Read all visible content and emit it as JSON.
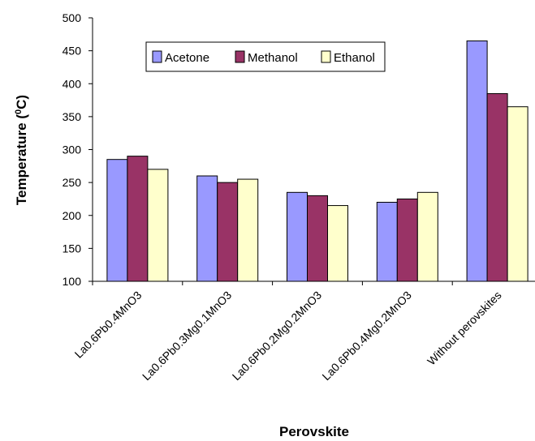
{
  "chart_data": {
    "type": "bar",
    "title": "",
    "xlabel": "Perovskite",
    "ylabel_main": "Temperature (",
    "ylabel_sup": "0",
    "ylabel_tail": "C)",
    "ylim": [
      100,
      500
    ],
    "yticks": [
      "100",
      "150",
      "200",
      "250",
      "300",
      "350",
      "400",
      "450",
      "500"
    ],
    "grid": false,
    "legend_position": "top-center",
    "categories": [
      "La0.6Pb0.4MnO3",
      "La0.6Pb0.3Mg0.1MnO3",
      "La0.6Pb0.2Mg0.2MnO3",
      "La0.6Pb0.4Mg0.2MnO3",
      "Without perovskites"
    ],
    "series": [
      {
        "name": "Acetone",
        "color": "#9999ff",
        "values": [
          285,
          260,
          235,
          220,
          465
        ]
      },
      {
        "name": "Methanol",
        "color": "#993366",
        "values": [
          290,
          250,
          230,
          225,
          385
        ]
      },
      {
        "name": "Ethanol",
        "color": "#ffffcc",
        "values": [
          270,
          255,
          215,
          235,
          365
        ]
      }
    ]
  }
}
